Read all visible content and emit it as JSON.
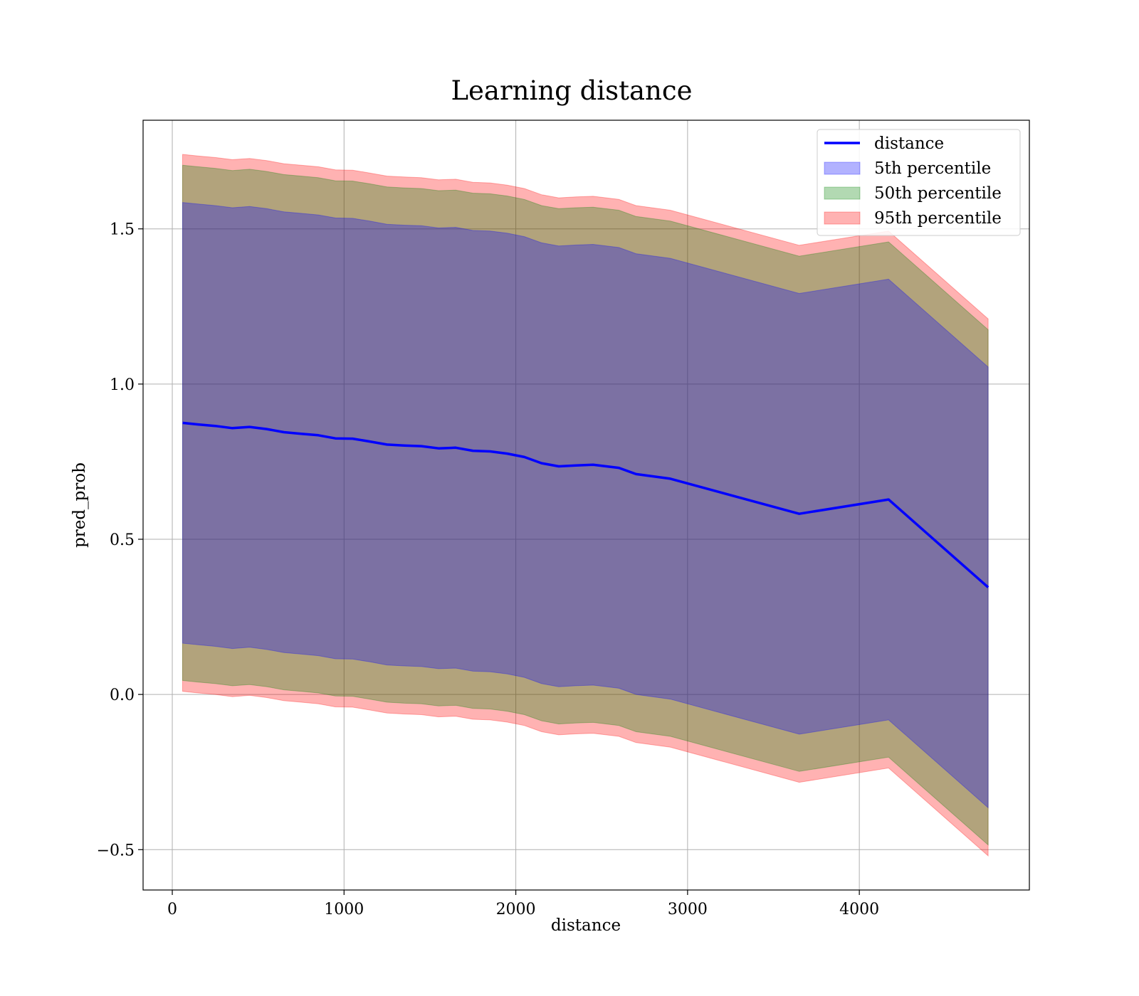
{
  "chart_data": {
    "type": "area",
    "title": "Learning distance",
    "xlabel": "distance",
    "ylabel": "pred_prob",
    "xlim": [
      -170,
      4990
    ],
    "ylim": [
      -0.63,
      1.85
    ],
    "xticks": [
      0,
      1000,
      2000,
      3000,
      4000
    ],
    "yticks": [
      -0.5,
      0.0,
      0.5,
      1.0,
      1.5
    ],
    "ytick_labels": [
      "−0.5",
      "0.0",
      "0.5",
      "1.0",
      "1.5"
    ],
    "grid": true,
    "legend_position": "top-right",
    "x": [
      60,
      150,
      250,
      350,
      450,
      550,
      650,
      750,
      850,
      950,
      1050,
      1150,
      1250,
      1350,
      1450,
      1550,
      1650,
      1750,
      1850,
      1950,
      2050,
      2150,
      2250,
      2350,
      2450,
      2600,
      2700,
      2900,
      3650,
      4170,
      4750
    ],
    "line": {
      "name": "distance",
      "color": "#0000ff",
      "values": [
        0.875,
        0.87,
        0.865,
        0.858,
        0.862,
        0.855,
        0.845,
        0.84,
        0.835,
        0.825,
        0.824,
        0.815,
        0.805,
        0.802,
        0.8,
        0.793,
        0.795,
        0.785,
        0.783,
        0.776,
        0.765,
        0.745,
        0.735,
        0.738,
        0.74,
        0.73,
        0.71,
        0.695,
        0.582,
        0.628,
        0.345
      ]
    },
    "bands": [
      {
        "name": "5th percentile",
        "color": "#0000ff",
        "opacity": 0.3,
        "lower": [
          0.165,
          0.16,
          0.155,
          0.148,
          0.152,
          0.145,
          0.135,
          0.13,
          0.125,
          0.115,
          0.114,
          0.105,
          0.095,
          0.092,
          0.09,
          0.083,
          0.085,
          0.075,
          0.073,
          0.066,
          0.055,
          0.035,
          0.025,
          0.028,
          0.03,
          0.02,
          0.0,
          -0.015,
          -0.128,
          -0.082,
          -0.365
        ],
        "upper": [
          1.585,
          1.58,
          1.575,
          1.568,
          1.572,
          1.565,
          1.555,
          1.55,
          1.545,
          1.535,
          1.534,
          1.525,
          1.515,
          1.512,
          1.51,
          1.503,
          1.505,
          1.495,
          1.493,
          1.486,
          1.475,
          1.455,
          1.445,
          1.448,
          1.45,
          1.44,
          1.42,
          1.405,
          1.292,
          1.338,
          1.055
        ]
      },
      {
        "name": "50th percentile",
        "color": "#008000",
        "opacity": 0.3,
        "lower": [
          0.045,
          0.04,
          0.035,
          0.028,
          0.032,
          0.025,
          0.015,
          0.01,
          0.005,
          -0.005,
          -0.006,
          -0.015,
          -0.025,
          -0.028,
          -0.03,
          -0.037,
          -0.035,
          -0.045,
          -0.047,
          -0.054,
          -0.065,
          -0.085,
          -0.095,
          -0.092,
          -0.09,
          -0.1,
          -0.12,
          -0.135,
          -0.248,
          -0.202,
          -0.485
        ],
        "upper": [
          1.705,
          1.7,
          1.695,
          1.688,
          1.692,
          1.685,
          1.675,
          1.67,
          1.665,
          1.655,
          1.654,
          1.645,
          1.635,
          1.632,
          1.63,
          1.623,
          1.625,
          1.615,
          1.613,
          1.606,
          1.595,
          1.575,
          1.565,
          1.568,
          1.57,
          1.56,
          1.54,
          1.525,
          1.412,
          1.458,
          1.175
        ]
      },
      {
        "name": "95th percentile",
        "color": "#ff0000",
        "opacity": 0.3,
        "lower": [
          0.01,
          0.005,
          0.0,
          -0.007,
          -0.003,
          -0.01,
          -0.02,
          -0.025,
          -0.03,
          -0.04,
          -0.041,
          -0.05,
          -0.06,
          -0.063,
          -0.065,
          -0.072,
          -0.07,
          -0.08,
          -0.082,
          -0.089,
          -0.1,
          -0.12,
          -0.13,
          -0.127,
          -0.125,
          -0.135,
          -0.155,
          -0.17,
          -0.283,
          -0.237,
          -0.52
        ],
        "upper": [
          1.74,
          1.735,
          1.73,
          1.723,
          1.727,
          1.72,
          1.71,
          1.705,
          1.7,
          1.69,
          1.689,
          1.68,
          1.67,
          1.667,
          1.665,
          1.658,
          1.66,
          1.65,
          1.648,
          1.641,
          1.63,
          1.61,
          1.6,
          1.603,
          1.605,
          1.595,
          1.575,
          1.56,
          1.447,
          1.493,
          1.21
        ]
      }
    ]
  }
}
